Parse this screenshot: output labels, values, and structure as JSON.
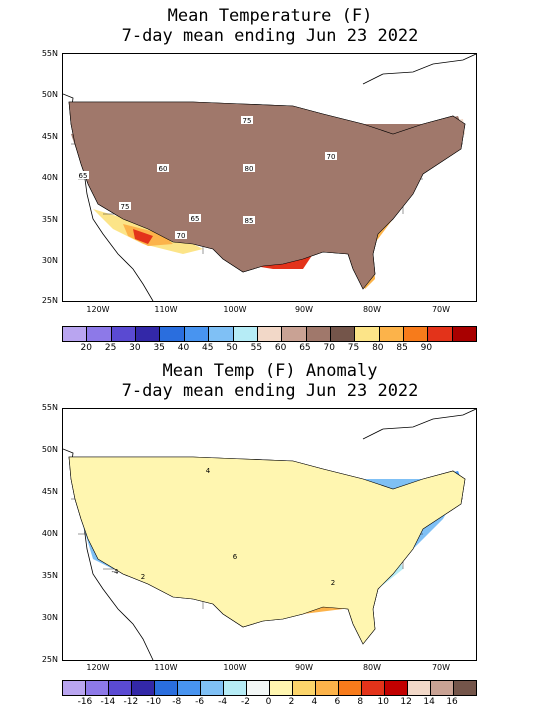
{
  "map1": {
    "title_line1": "Mean Temperature (F)",
    "title_line2": "7-day mean ending Jun 23 2022",
    "lat_labels": [
      "55N",
      "50N",
      "45N",
      "40N",
      "35N",
      "30N",
      "25N"
    ],
    "lon_labels": [
      "120W",
      "110W",
      "100W",
      "90W",
      "80W",
      "70W"
    ],
    "legend_colors": [
      "#b9a5f0",
      "#8d79e8",
      "#5a4ad2",
      "#3328a8",
      "#2a6ede",
      "#4894f0",
      "#7fc0f5",
      "#b6ecf6",
      "#f2d8c8",
      "#c9a294",
      "#a0786b",
      "#74554a",
      "#fce488",
      "#fcb34a",
      "#f77b1b",
      "#e3331a",
      "#a80000"
    ],
    "legend_labels": [
      "20",
      "25",
      "30",
      "35",
      "40",
      "45",
      "50",
      "55",
      "60",
      "65",
      "70",
      "75",
      "80",
      "85",
      "90"
    ],
    "contour_labels": [
      "75",
      "60",
      "80",
      "65",
      "75",
      "70",
      "85",
      "70",
      "65"
    ]
  },
  "map2": {
    "title_line1": "Mean Temp (F) Anomaly",
    "title_line2": "7-day mean ending Jun 23 2022",
    "lat_labels": [
      "55N",
      "50N",
      "45N",
      "40N",
      "35N",
      "30N",
      "25N"
    ],
    "lon_labels": [
      "120W",
      "110W",
      "100W",
      "90W",
      "80W",
      "70W"
    ],
    "legend_colors": [
      "#b9a5f0",
      "#8d79e8",
      "#5a4ad2",
      "#3328a8",
      "#2a6ede",
      "#4894f0",
      "#7fc0f5",
      "#b6ecf6",
      "#f2f7f6",
      "#fff6b0",
      "#fcd56b",
      "#fcb34a",
      "#f77b1b",
      "#e3331a",
      "#c20000",
      "#f2d8c8",
      "#c9a294",
      "#74554a"
    ],
    "legend_labels": [
      "-16",
      "-14",
      "-12",
      "-10",
      "-8",
      "-6",
      "-4",
      "-2",
      "0",
      "2",
      "4",
      "6",
      "8",
      "10",
      "12",
      "14",
      "16"
    ],
    "contour_labels": [
      "4",
      "6",
      "-4",
      "2",
      "2"
    ]
  }
}
